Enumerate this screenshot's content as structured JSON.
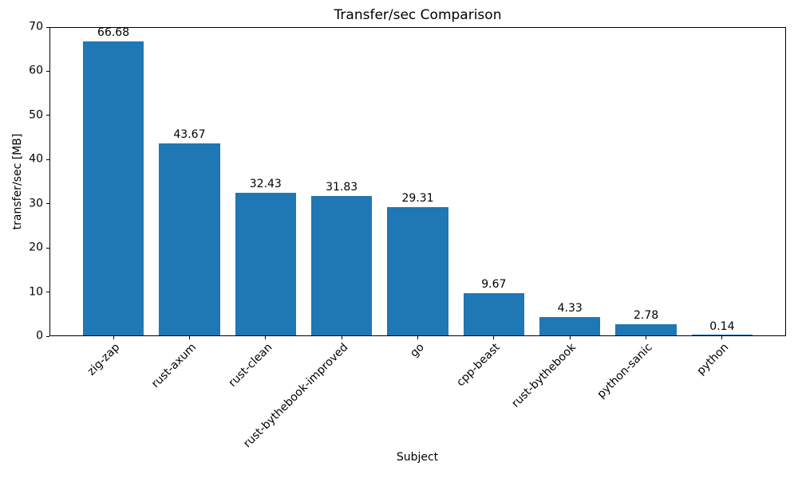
{
  "chart_data": {
    "type": "bar",
    "title": "Transfer/sec Comparison",
    "xlabel": "Subject",
    "ylabel": "transfer/sec [MB]",
    "categories": [
      "zig-zap",
      "rust-axum",
      "rust-clean",
      "rust-bythebook-improved",
      "go",
      "cpp-beast",
      "rust-bythebook",
      "python-sanic",
      "python"
    ],
    "values": [
      66.68,
      43.67,
      32.43,
      31.83,
      29.31,
      9.67,
      4.33,
      2.78,
      0.14
    ],
    "value_labels": [
      "66.68",
      "43.67",
      "32.43",
      "31.83",
      "29.31",
      "9.67",
      "4.33",
      "2.78",
      "0.14"
    ],
    "ylim": [
      0,
      70
    ],
    "yticks": [
      0,
      10,
      20,
      30,
      40,
      50,
      60,
      70
    ],
    "xtick_rotation": 45,
    "bar_color": "#1f77b4",
    "grid": false,
    "legend": null
  }
}
